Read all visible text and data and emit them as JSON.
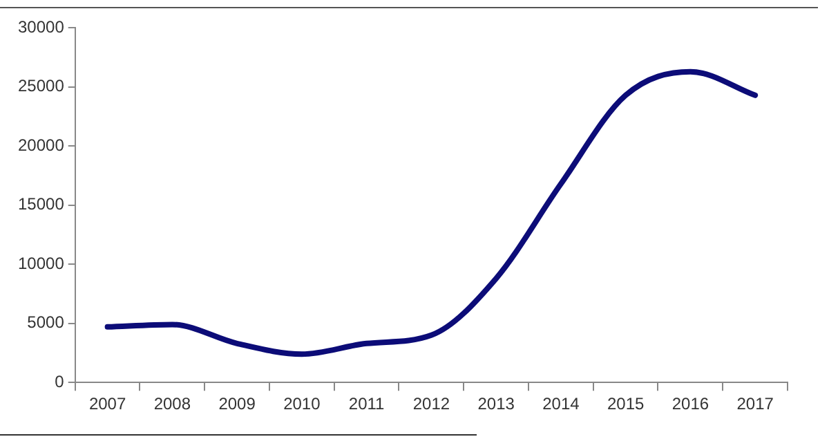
{
  "chart_data": {
    "type": "line",
    "categories": [
      "2007",
      "2008",
      "2009",
      "2010",
      "2011",
      "2012",
      "2013",
      "2014",
      "2015",
      "2016",
      "2017"
    ],
    "series": [
      {
        "color": "#0c0c78",
        "values": [
          4700,
          4900,
          3300,
          2400,
          3300,
          4000,
          8800,
          16800,
          24300,
          26300,
          24300
        ]
      }
    ],
    "ylim": [
      0,
      30000
    ],
    "yticks": [
      0,
      5000,
      10000,
      15000,
      20000,
      25000,
      30000
    ],
    "grid": false,
    "legend": false,
    "marker": "none",
    "line_style": "solid"
  }
}
